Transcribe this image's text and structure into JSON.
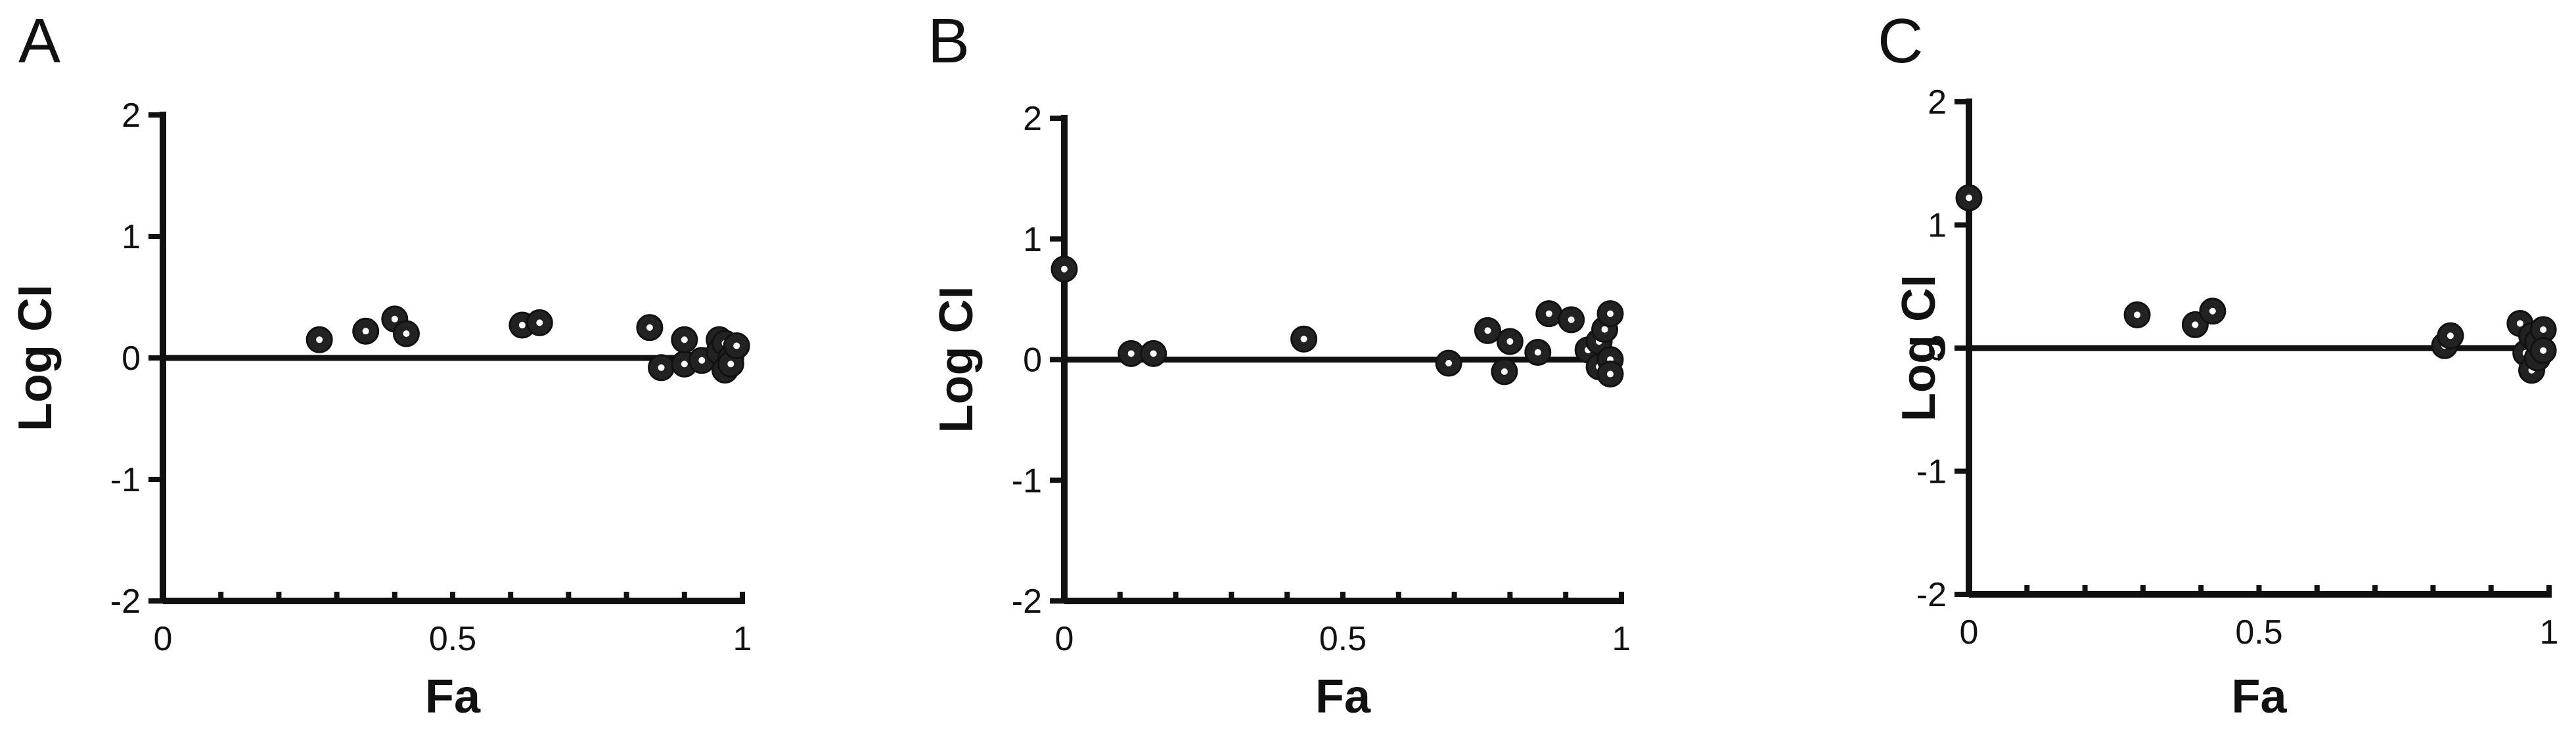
{
  "chart_data": [
    {
      "type": "scatter",
      "panel_label": "A",
      "xlabel": "Fa",
      "ylabel": "Log CI",
      "xlim": [
        0,
        1
      ],
      "ylim": [
        -2,
        2
      ],
      "xticks": [
        "0",
        "0.5",
        "1"
      ],
      "yticks": [
        "-2",
        "-1",
        "0",
        "1",
        "2"
      ],
      "reference_line_y": 0,
      "points": [
        {
          "x": 0.27,
          "y": 0.15
        },
        {
          "x": 0.35,
          "y": 0.22
        },
        {
          "x": 0.4,
          "y": 0.32
        },
        {
          "x": 0.42,
          "y": 0.2
        },
        {
          "x": 0.62,
          "y": 0.27
        },
        {
          "x": 0.65,
          "y": 0.29
        },
        {
          "x": 0.84,
          "y": 0.25
        },
        {
          "x": 0.86,
          "y": -0.08
        },
        {
          "x": 0.9,
          "y": -0.05
        },
        {
          "x": 0.9,
          "y": 0.15
        },
        {
          "x": 0.93,
          "y": -0.02
        },
        {
          "x": 0.96,
          "y": 0.15
        },
        {
          "x": 0.96,
          "y": 0.05
        },
        {
          "x": 0.97,
          "y": -0.1
        },
        {
          "x": 0.97,
          "y": 0.12
        },
        {
          "x": 0.98,
          "y": 0.0
        },
        {
          "x": 0.98,
          "y": -0.05
        },
        {
          "x": 0.99,
          "y": 0.1
        }
      ]
    },
    {
      "type": "scatter",
      "panel_label": "B",
      "xlabel": "Fa",
      "ylabel": "Log CI",
      "xlim": [
        0,
        1
      ],
      "ylim": [
        -2,
        2
      ],
      "xticks": [
        "0",
        "0.5",
        "1"
      ],
      "yticks": [
        "-2",
        "-1",
        "0",
        "1",
        "2"
      ],
      "reference_line_y": 0,
      "points": [
        {
          "x": 0.0,
          "y": 0.75
        },
        {
          "x": 0.12,
          "y": 0.05
        },
        {
          "x": 0.16,
          "y": 0.05
        },
        {
          "x": 0.43,
          "y": 0.17
        },
        {
          "x": 0.69,
          "y": -0.03
        },
        {
          "x": 0.76,
          "y": 0.24
        },
        {
          "x": 0.79,
          "y": -0.1
        },
        {
          "x": 0.8,
          "y": 0.15
        },
        {
          "x": 0.85,
          "y": 0.06
        },
        {
          "x": 0.87,
          "y": 0.38
        },
        {
          "x": 0.91,
          "y": 0.33
        },
        {
          "x": 0.94,
          "y": 0.08
        },
        {
          "x": 0.96,
          "y": -0.06
        },
        {
          "x": 0.96,
          "y": 0.15
        },
        {
          "x": 0.97,
          "y": 0.25
        },
        {
          "x": 0.98,
          "y": 0.38
        },
        {
          "x": 0.98,
          "y": 0.0
        },
        {
          "x": 0.98,
          "y": -0.12
        }
      ]
    },
    {
      "type": "scatter",
      "panel_label": "C",
      "xlabel": "Fa",
      "ylabel": "Log CI",
      "xlim": [
        0,
        1
      ],
      "ylim": [
        -2,
        2
      ],
      "xticks": [
        "0",
        "0.5",
        "1"
      ],
      "yticks": [
        "-2",
        "-1",
        "0",
        "1",
        "2"
      ],
      "reference_line_y": 0,
      "points": [
        {
          "x": 0.0,
          "y": 1.22
        },
        {
          "x": 0.29,
          "y": 0.27
        },
        {
          "x": 0.39,
          "y": 0.19
        },
        {
          "x": 0.42,
          "y": 0.3
        },
        {
          "x": 0.82,
          "y": 0.02
        },
        {
          "x": 0.83,
          "y": 0.1
        },
        {
          "x": 0.95,
          "y": 0.2
        },
        {
          "x": 0.96,
          "y": -0.04
        },
        {
          "x": 0.97,
          "y": 0.1
        },
        {
          "x": 0.97,
          "y": -0.18
        },
        {
          "x": 0.98,
          "y": -0.08
        },
        {
          "x": 0.98,
          "y": 0.05
        },
        {
          "x": 0.99,
          "y": 0.15
        },
        {
          "x": 0.99,
          "y": -0.02
        }
      ]
    }
  ]
}
